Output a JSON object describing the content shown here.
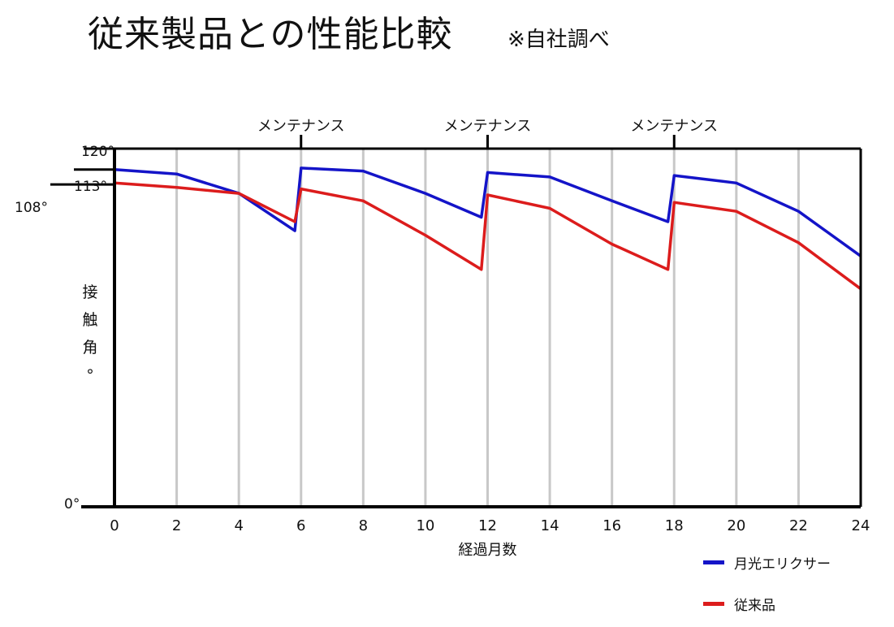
{
  "header": {
    "title": "従来製品との性能比較",
    "note": "※自社調べ"
  },
  "colors": {
    "series_a": "#1414c8",
    "series_b": "#dc1c1c",
    "grid": "#c8c8c8",
    "axis": "#000000"
  },
  "chart_data": {
    "type": "line",
    "title": "",
    "xlabel": "経過月数",
    "ylabel": "接触角°",
    "xlim": [
      0,
      24
    ],
    "ylim": [
      0,
      120
    ],
    "x_ticks": [
      "0",
      "2",
      "4",
      "6",
      "8",
      "10",
      "12",
      "14",
      "16",
      "18",
      "20",
      "22",
      "24"
    ],
    "y_tick_labels": [
      {
        "value": 120,
        "label": "120°"
      },
      {
        "value": 113,
        "label": "113°"
      },
      {
        "value": 108,
        "label": "108°"
      },
      {
        "value": 0,
        "label": "0°"
      }
    ],
    "grid": true,
    "maintenance": [
      {
        "x": 6,
        "label": "メンテナンス"
      },
      {
        "x": 12,
        "label": "メンテナンス"
      },
      {
        "x": 18,
        "label": "メンテナンス"
      }
    ],
    "series": [
      {
        "name": "月光エリクサー",
        "points": [
          [
            0,
            113
          ],
          [
            2,
            111.5
          ],
          [
            4,
            105
          ],
          [
            5.8,
            92.5
          ],
          [
            6,
            113.5
          ],
          [
            8,
            112.5
          ],
          [
            10,
            105
          ],
          [
            11.8,
            97
          ],
          [
            12,
            112
          ],
          [
            14,
            110.5
          ],
          [
            16,
            102.5
          ],
          [
            17.8,
            95.5
          ],
          [
            18,
            111
          ],
          [
            20,
            108.5
          ],
          [
            22,
            99
          ],
          [
            24,
            84
          ]
        ]
      },
      {
        "name": "従来品",
        "points": [
          [
            0,
            108.5
          ],
          [
            2,
            107
          ],
          [
            4,
            105
          ],
          [
            5.8,
            95.5
          ],
          [
            6,
            106.5
          ],
          [
            8,
            102.5
          ],
          [
            10,
            91
          ],
          [
            11.8,
            79.5
          ],
          [
            12,
            104.5
          ],
          [
            14,
            100
          ],
          [
            16,
            88
          ],
          [
            17.8,
            79.5
          ],
          [
            18,
            102
          ],
          [
            20,
            99
          ],
          [
            22,
            88.5
          ],
          [
            24,
            73
          ]
        ]
      }
    ]
  },
  "legend": {
    "position": "bottom-right",
    "items": [
      "月光エリクサー",
      "従来品"
    ]
  }
}
